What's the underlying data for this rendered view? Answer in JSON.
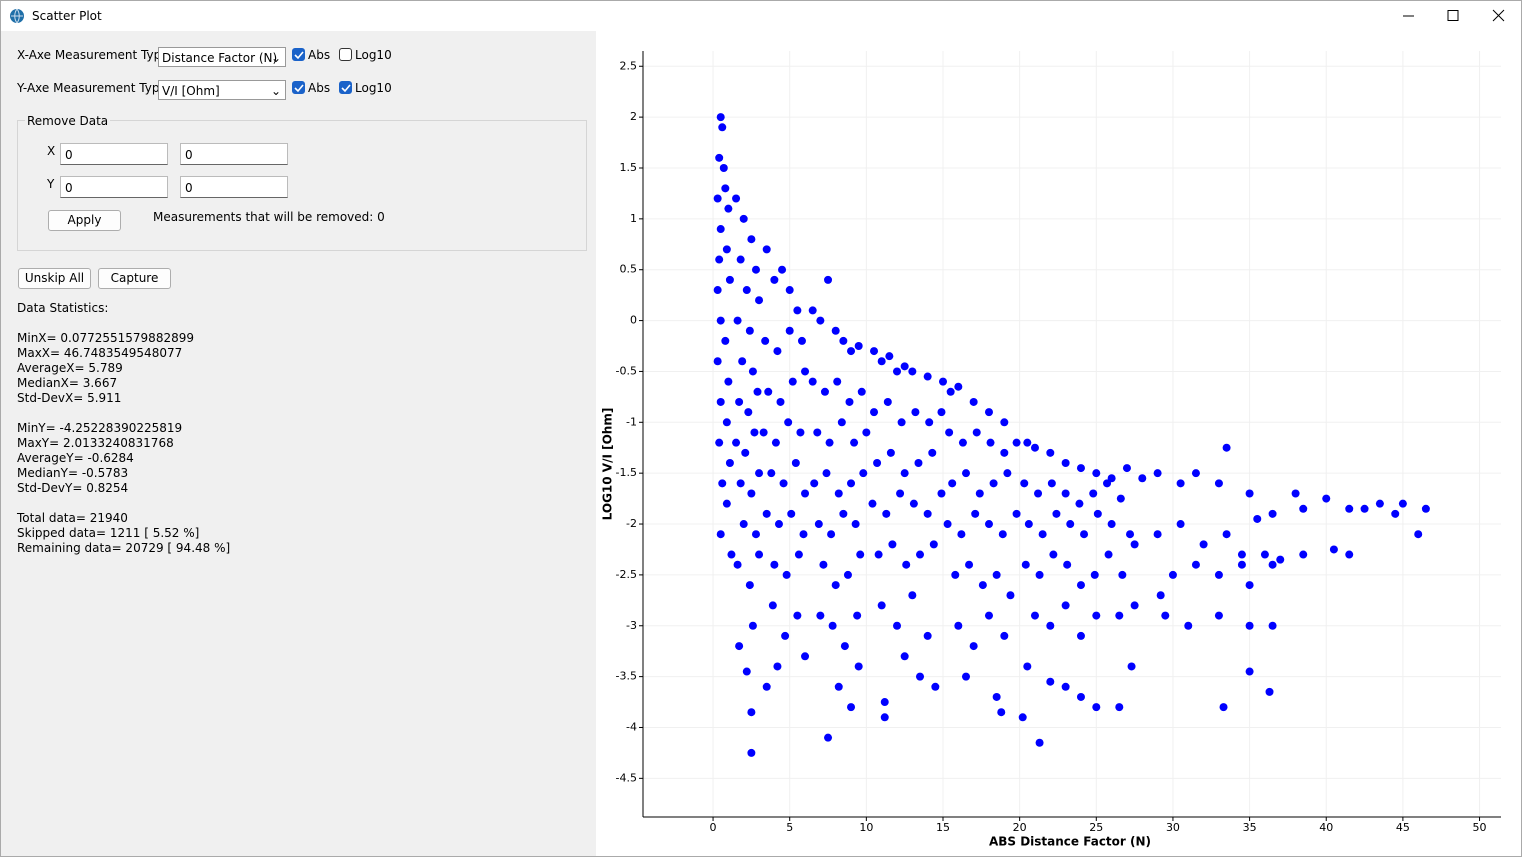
{
  "window": {
    "title": "Scatter Plot"
  },
  "controls": {
    "x_row": {
      "label": "X-Axe Measurement Type",
      "select": "Distance Factor (N)",
      "abs": {
        "label": "Abs",
        "checked": true
      },
      "log": {
        "label": "Log10",
        "checked": false
      }
    },
    "y_row": {
      "label": "Y-Axe Measurement Type",
      "select": "V/I [Ohm]",
      "abs": {
        "label": "Abs",
        "checked": true
      },
      "log": {
        "label": "Log10",
        "checked": true
      }
    }
  },
  "remove_data": {
    "title": "Remove Data",
    "x_label": "X",
    "y_label": "Y",
    "x_from": "0",
    "x_to": "0",
    "y_from": "0",
    "y_to": "0",
    "apply": "Apply",
    "note": "Measurements that will be removed: 0"
  },
  "buttons": [
    "Unskip All",
    "Capture"
  ],
  "statistics": {
    "title": "Data Statistics:",
    "groups": [
      [
        "MinX= 0.0772551579882899",
        "MaxX= 46.7483549548077",
        "AverageX= 5.789",
        "MedianX= 3.667",
        "Std-DevX= 5.911"
      ],
      [
        "MinY= -4.25228390225819",
        "MaxY= 2.0133240831768",
        "AverageY= -0.6284",
        "MedianY= -0.5783",
        "Std-DevY= 0.8254"
      ],
      [
        "Total data= 21940",
        "Skipped data= 1211 [ 5.52 %]",
        "Remaining data= 20729 [ 94.48 %]"
      ]
    ]
  },
  "chart_data": {
    "type": "scatter",
    "xlabel": "ABS Distance Factor (N)",
    "ylabel": "LOG10 V/I [Ohm]",
    "color": "#0000ff",
    "grid": true,
    "xlim": [
      -4.57,
      51.4
    ],
    "ylim": [
      -4.88,
      2.65
    ],
    "xticks": [
      0,
      5,
      10,
      15,
      20,
      25,
      30,
      35,
      40,
      45,
      50
    ],
    "yticks": [
      2.5,
      2,
      1.5,
      1,
      0.5,
      0,
      -0.5,
      -1,
      -1.5,
      -2,
      -2.5,
      -3,
      -3.5,
      -4,
      -4.5
    ],
    "x": [
      0.5,
      0.6,
      0.4,
      0.7,
      0.3,
      0.8,
      0.5,
      1.0,
      0.4,
      0.9,
      0.3,
      1.1,
      0.5,
      0.8,
      0.3,
      1.0,
      0.5,
      0.9,
      0.4,
      1.1,
      0.6,
      0.9,
      0.5,
      1.2,
      1.5,
      2,
      2.5,
      1.8,
      2.2,
      2.8,
      1.6,
      2.4,
      3,
      1.9,
      2.6,
      1.7,
      2.3,
      2.9,
      1.5,
      2.1,
      2.7,
      1.8,
      2.5,
      3,
      2,
      2.8,
      1.6,
      2.4,
      3,
      1.7,
      2.6,
      2.5,
      2.5,
      2.2,
      3.5,
      3.5,
      4,
      4.5,
      5,
      5.5,
      3.4,
      4.2,
      5,
      5.8,
      3.6,
      4.4,
      5.2,
      6,
      3.3,
      4.1,
      4.9,
      5.7,
      3.8,
      4.6,
      5.4,
      6,
      3.5,
      4.3,
      5.1,
      5.9,
      4,
      4.8,
      5.6,
      3.9,
      4.7,
      5.5,
      6,
      4.2,
      6.5,
      7,
      7.5,
      8,
      8.5,
      9,
      9.5,
      6.5,
      7.3,
      8.1,
      8.9,
      9.7,
      6.8,
      7.6,
      8.4,
      9.2,
      10,
      6.6,
      7.4,
      8.2,
      9,
      9.8,
      6.9,
      7.7,
      8.5,
      9.3,
      7.2,
      8,
      8.8,
      9.6,
      7,
      7.8,
      8.6,
      9.4,
      7.5,
      9,
      9.5,
      8.2,
      10.5,
      11,
      11.5,
      12,
      12.5,
      13,
      14,
      15,
      10.5,
      11.4,
      12.3,
      13.2,
      14.1,
      14.9,
      10.7,
      11.6,
      12.5,
      13.4,
      14.3,
      10.4,
      11.3,
      12.2,
      13.1,
      14,
      14.9,
      10.8,
      11.7,
      12.6,
      13.5,
      14.4,
      11,
      12,
      13,
      14,
      11.2,
      11.2,
      12.5,
      13.5,
      14.5,
      15.5,
      16,
      17,
      18,
      19,
      15.4,
      16.3,
      17.2,
      18.1,
      19,
      19.8,
      15.6,
      16.5,
      17.4,
      18.3,
      19.2,
      15.3,
      16.2,
      17.1,
      18,
      18.9,
      19.8,
      15.8,
      16.7,
      17.6,
      18.5,
      19.4,
      16,
      17,
      18,
      19,
      16.5,
      18.5,
      18.8,
      20.2,
      21.3,
      20.5,
      21,
      22,
      23,
      24,
      25,
      26,
      27,
      28,
      20.3,
      21.2,
      22.1,
      23,
      23.9,
      24.8,
      25.7,
      26.6,
      20.6,
      21.5,
      22.4,
      23.3,
      24.2,
      25.1,
      26,
      27.2,
      20.4,
      21.3,
      22.2,
      23.1,
      24,
      24.9,
      25.8,
      26.7,
      21,
      22,
      23,
      24,
      25,
      26.5,
      22,
      23,
      24,
      25,
      26.5,
      27.3,
      20.5,
      27.5,
      29,
      30.5,
      31.5,
      33,
      35,
      36.5,
      38,
      40,
      41.5,
      43.5,
      45,
      46.5,
      33.5,
      35.5,
      38.5,
      42.5,
      44.5,
      46,
      29,
      30.5,
      32,
      33.5,
      34.5,
      36,
      37,
      38.5,
      40.5,
      41.5,
      30,
      31.5,
      33,
      34.5,
      36.5,
      35,
      29.5,
      31,
      33,
      35,
      36.5,
      33.3,
      36.3,
      35,
      29.2,
      27.5
    ],
    "values": [
      2.0,
      1.9,
      1.6,
      1.5,
      1.2,
      1.3,
      0.9,
      1.1,
      0.6,
      0.7,
      0.3,
      0.4,
      0,
      -0.2,
      -0.4,
      -0.6,
      -0.8,
      -1.0,
      -1.2,
      -1.4,
      -1.6,
      -1.8,
      -2.1,
      -2.3,
      1.2,
      1.0,
      0.8,
      0.6,
      0.3,
      0.5,
      0,
      -0.1,
      0.2,
      -0.4,
      -0.5,
      -0.8,
      -0.9,
      -0.7,
      -1.2,
      -1.3,
      -1.1,
      -1.6,
      -1.7,
      -1.5,
      -2.0,
      -2.1,
      -2.4,
      -2.6,
      -2.3,
      -3.2,
      -3.0,
      -3.85,
      -4.25,
      -3.45,
      -3.6,
      0.7,
      0.4,
      0.5,
      0.3,
      0.1,
      -0.2,
      -0.3,
      -0.1,
      -0.2,
      -0.7,
      -0.8,
      -0.6,
      -0.5,
      -1.1,
      -1.2,
      -1.0,
      -1.1,
      -1.5,
      -1.6,
      -1.4,
      -1.7,
      -1.9,
      -2.0,
      -1.9,
      -2.1,
      -2.4,
      -2.5,
      -2.3,
      -2.8,
      -3.1,
      -2.9,
      -3.3,
      -3.4,
      0.1,
      0,
      0.4,
      -0.1,
      -0.2,
      -0.3,
      -0.25,
      -0.6,
      -0.7,
      -0.6,
      -0.8,
      -0.7,
      -1.1,
      -1.2,
      -1.0,
      -1.2,
      -1.1,
      -1.6,
      -1.5,
      -1.7,
      -1.6,
      -1.5,
      -2.0,
      -2.1,
      -1.9,
      -2.0,
      -2.4,
      -2.6,
      -2.5,
      -2.3,
      -2.9,
      -3.0,
      -3.2,
      -2.9,
      -4.1,
      -3.8,
      -3.4,
      -3.6,
      -0.3,
      -0.4,
      -0.35,
      -0.5,
      -0.45,
      -0.5,
      -0.55,
      -0.6,
      -0.9,
      -0.8,
      -1.0,
      -0.9,
      -1.0,
      -0.9,
      -1.4,
      -1.3,
      -1.5,
      -1.4,
      -1.3,
      -1.8,
      -1.9,
      -1.7,
      -1.8,
      -1.9,
      -1.7,
      -2.3,
      -2.2,
      -2.4,
      -2.3,
      -2.2,
      -2.8,
      -3.0,
      -2.7,
      -3.1,
      -3.9,
      -3.75,
      -3.3,
      -3.5,
      -3.6,
      -0.7,
      -0.65,
      -0.8,
      -0.9,
      -1.0,
      -1.1,
      -1.2,
      -1.1,
      -1.2,
      -1.3,
      -1.2,
      -1.6,
      -1.5,
      -1.7,
      -1.6,
      -1.5,
      -2.0,
      -2.1,
      -1.9,
      -2.0,
      -2.1,
      -1.9,
      -2.5,
      -2.4,
      -2.6,
      -2.5,
      -2.7,
      -3.0,
      -3.2,
      -2.9,
      -3.1,
      -3.5,
      -3.7,
      -3.85,
      -3.9,
      -4.15,
      -1.2,
      -1.25,
      -1.3,
      -1.4,
      -1.45,
      -1.5,
      -1.55,
      -1.45,
      -1.55,
      -1.6,
      -1.7,
      -1.6,
      -1.7,
      -1.8,
      -1.7,
      -1.6,
      -1.75,
      -2.0,
      -2.1,
      -1.9,
      -2.0,
      -2.1,
      -1.9,
      -2.0,
      -2.1,
      -2.4,
      -2.5,
      -2.3,
      -2.4,
      -2.6,
      -2.5,
      -2.3,
      -2.5,
      -2.9,
      -3.0,
      -2.8,
      -3.1,
      -2.9,
      -2.9,
      -3.55,
      -3.6,
      -3.7,
      -3.8,
      -3.8,
      -3.4,
      -3.4,
      -2.2,
      -1.5,
      -1.6,
      -1.5,
      -1.6,
      -1.7,
      -1.9,
      -1.7,
      -1.75,
      -1.85,
      -1.8,
      -1.8,
      -1.85,
      -1.25,
      -1.95,
      -1.85,
      -1.85,
      -1.9,
      -2.1,
      -2.1,
      -2.0,
      -2.2,
      -2.1,
      -2.3,
      -2.3,
      -2.35,
      -2.3,
      -2.25,
      -2.3,
      -2.5,
      -2.4,
      -2.5,
      -2.4,
      -2.4,
      -2.6,
      -2.9,
      -3.0,
      -2.9,
      -3.0,
      -3.0,
      -3.8,
      -3.65,
      -3.45,
      -2.7,
      -2.8
    ]
  }
}
